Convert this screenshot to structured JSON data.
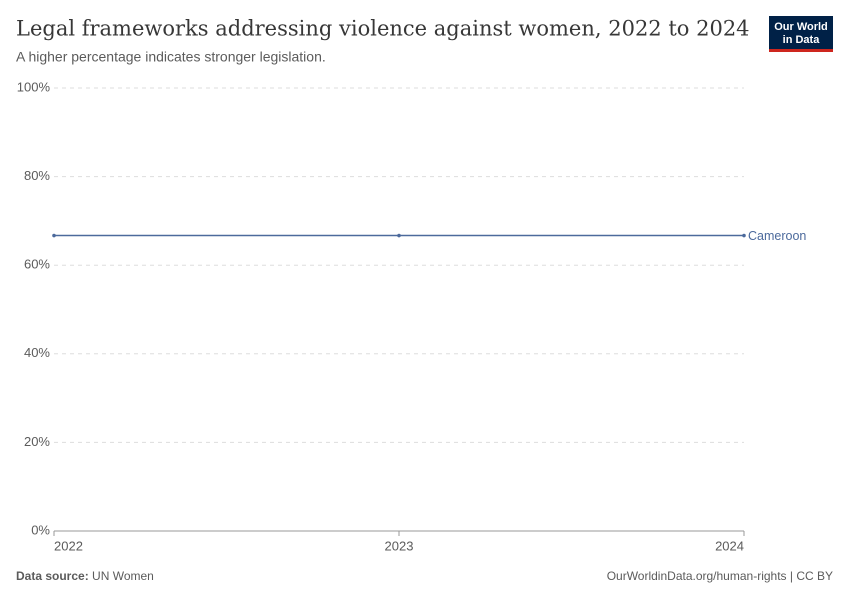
{
  "chart_data": {
    "type": "line",
    "title": "Legal frameworks addressing violence against women, 2022 to 2024",
    "subtitle": "A higher percentage indicates stronger legislation.",
    "logo": [
      "Our World",
      "in Data"
    ],
    "source_label": "Data source:",
    "source": "UN Women",
    "url": "OurWorldinData.org/human-rights | CC BY",
    "x": [
      2022,
      2023,
      2024
    ],
    "xlim": [
      2022,
      2024
    ],
    "xticks": [
      2022,
      2023,
      2024
    ],
    "ylim": [
      0,
      100
    ],
    "yticks": [
      {
        "value": 0,
        "label": "0%"
      },
      {
        "value": 20,
        "label": "20%"
      },
      {
        "value": 40,
        "label": "40%"
      },
      {
        "value": 60,
        "label": "60%"
      },
      {
        "value": 80,
        "label": "80%"
      },
      {
        "value": 100,
        "label": "100%"
      }
    ],
    "grid": true,
    "series": [
      {
        "name": "Cameroon",
        "color": "#4c6a9c",
        "values": [
          66.7,
          66.7,
          66.7
        ]
      }
    ]
  }
}
